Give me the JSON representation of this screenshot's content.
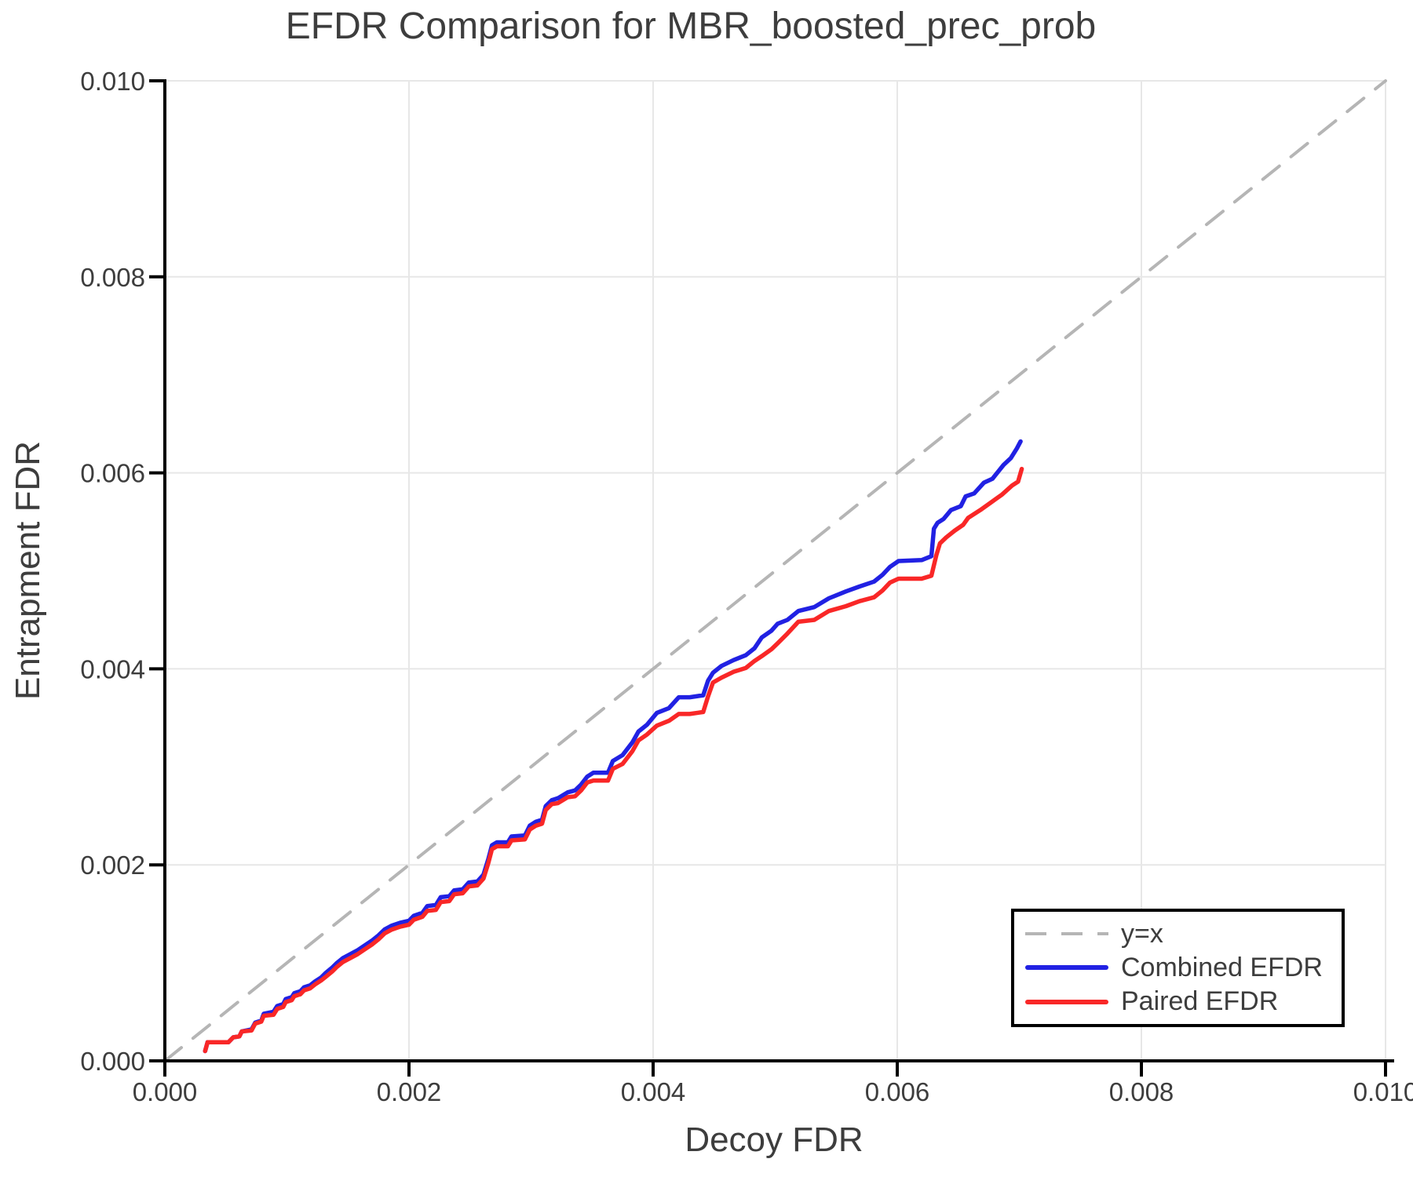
{
  "chart_data": {
    "type": "line",
    "title": "EFDR Comparison for MBR_boosted_prec_prob",
    "xlabel": "Decoy FDR",
    "ylabel": "Entrapment FDR",
    "xlim": [
      0.0,
      0.01
    ],
    "ylim": [
      0.0,
      0.01
    ],
    "xticks": [
      0.0,
      0.002,
      0.004,
      0.006,
      0.008,
      0.01
    ],
    "yticks": [
      0.0,
      0.002,
      0.004,
      0.006,
      0.008,
      0.01
    ],
    "x_tick_labels": [
      "0.000",
      "0.002",
      "0.004",
      "0.006",
      "0.008",
      "0.010"
    ],
    "y_tick_labels": [
      "0.000",
      "0.002",
      "0.004",
      "0.006",
      "0.008",
      "0.010"
    ],
    "grid": true,
    "grid_color": "#e7e7e7",
    "axis_color": "#000000",
    "text_color": "#3d3d3d",
    "legend": {
      "position": "lower right",
      "border_color": "#000000",
      "background": "#ffffff"
    },
    "series": [
      {
        "name": "y=x",
        "style": "dashed",
        "color": "#b5b5b5",
        "points": [
          [
            0.0,
            0.0
          ],
          [
            0.01,
            0.01
          ]
        ]
      },
      {
        "name": "Combined EFDR",
        "style": "solid",
        "color": "#2121e3",
        "points": [
          [
            0.00033,
            0.0001
          ],
          [
            0.00035,
            0.00019
          ],
          [
            0.00052,
            0.00019
          ],
          [
            0.00056,
            0.00024
          ],
          [
            0.00061,
            0.00025
          ],
          [
            0.00063,
            0.0003
          ],
          [
            0.00071,
            0.00032
          ],
          [
            0.00074,
            0.00039
          ],
          [
            0.00079,
            0.00041
          ],
          [
            0.00081,
            0.00048
          ],
          [
            0.00089,
            0.0005
          ],
          [
            0.00092,
            0.00056
          ],
          [
            0.00097,
            0.00058
          ],
          [
            0.00099,
            0.00063
          ],
          [
            0.00104,
            0.00065
          ],
          [
            0.00106,
            0.00069
          ],
          [
            0.00111,
            0.00071
          ],
          [
            0.00114,
            0.00075
          ],
          [
            0.00119,
            0.00077
          ],
          [
            0.00123,
            0.00081
          ],
          [
            0.00128,
            0.00085
          ],
          [
            0.00132,
            0.0009
          ],
          [
            0.00137,
            0.00095
          ],
          [
            0.00141,
            0.001
          ],
          [
            0.00146,
            0.00105
          ],
          [
            0.00152,
            0.00109
          ],
          [
            0.00158,
            0.00113
          ],
          [
            0.00164,
            0.00118
          ],
          [
            0.0017,
            0.00123
          ],
          [
            0.00175,
            0.00128
          ],
          [
            0.0018,
            0.00134
          ],
          [
            0.00186,
            0.00138
          ],
          [
            0.00193,
            0.00141
          ],
          [
            0.002,
            0.00143
          ],
          [
            0.00204,
            0.00148
          ],
          [
            0.00211,
            0.00151
          ],
          [
            0.00215,
            0.00158
          ],
          [
            0.00222,
            0.00159
          ],
          [
            0.00226,
            0.00167
          ],
          [
            0.00233,
            0.00168
          ],
          [
            0.00237,
            0.00174
          ],
          [
            0.00244,
            0.00175
          ],
          [
            0.00249,
            0.00182
          ],
          [
            0.00256,
            0.00183
          ],
          [
            0.00261,
            0.0019
          ],
          [
            0.00265,
            0.00206
          ],
          [
            0.00268,
            0.0022
          ],
          [
            0.00272,
            0.00223
          ],
          [
            0.00281,
            0.00223
          ],
          [
            0.00284,
            0.00229
          ],
          [
            0.00295,
            0.0023
          ],
          [
            0.00299,
            0.0024
          ],
          [
            0.00304,
            0.00244
          ],
          [
            0.00309,
            0.00246
          ],
          [
            0.00312,
            0.0026
          ],
          [
            0.00317,
            0.00266
          ],
          [
            0.00322,
            0.00268
          ],
          [
            0.0033,
            0.00274
          ],
          [
            0.00336,
            0.00276
          ],
          [
            0.00341,
            0.00282
          ],
          [
            0.00346,
            0.0029
          ],
          [
            0.00351,
            0.00294
          ],
          [
            0.00363,
            0.00294
          ],
          [
            0.00367,
            0.00306
          ],
          [
            0.00375,
            0.00312
          ],
          [
            0.00383,
            0.00325
          ],
          [
            0.00388,
            0.00336
          ],
          [
            0.00395,
            0.00343
          ],
          [
            0.00403,
            0.00355
          ],
          [
            0.00413,
            0.0036
          ],
          [
            0.00421,
            0.00371
          ],
          [
            0.0043,
            0.00371
          ],
          [
            0.00441,
            0.00373
          ],
          [
            0.00445,
            0.00388
          ],
          [
            0.00449,
            0.00396
          ],
          [
            0.00456,
            0.00403
          ],
          [
            0.00466,
            0.00409
          ],
          [
            0.00476,
            0.00414
          ],
          [
            0.00483,
            0.00421
          ],
          [
            0.00489,
            0.00432
          ],
          [
            0.00497,
            0.00439
          ],
          [
            0.00502,
            0.00446
          ],
          [
            0.0051,
            0.0045
          ],
          [
            0.00519,
            0.00459
          ],
          [
            0.00532,
            0.00463
          ],
          [
            0.00544,
            0.00472
          ],
          [
            0.00558,
            0.00479
          ],
          [
            0.00569,
            0.00484
          ],
          [
            0.00581,
            0.00489
          ],
          [
            0.00588,
            0.00496
          ],
          [
            0.00594,
            0.00504
          ],
          [
            0.00601,
            0.0051
          ],
          [
            0.0062,
            0.00511
          ],
          [
            0.00628,
            0.00515
          ],
          [
            0.0063,
            0.00543
          ],
          [
            0.00633,
            0.00549
          ],
          [
            0.00638,
            0.00553
          ],
          [
            0.00644,
            0.00562
          ],
          [
            0.00652,
            0.00566
          ],
          [
            0.00656,
            0.00576
          ],
          [
            0.00663,
            0.00579
          ],
          [
            0.00671,
            0.0059
          ],
          [
            0.00678,
            0.00594
          ],
          [
            0.00687,
            0.00608
          ],
          [
            0.00693,
            0.00615
          ],
          [
            0.00698,
            0.00625
          ],
          [
            0.00701,
            0.00632
          ]
        ]
      },
      {
        "name": "Paired EFDR",
        "style": "solid",
        "color": "#f92727",
        "points": [
          [
            0.00033,
            0.0001
          ],
          [
            0.00035,
            0.00019
          ],
          [
            0.00052,
            0.00019
          ],
          [
            0.00056,
            0.00024
          ],
          [
            0.00061,
            0.00025
          ],
          [
            0.00063,
            0.0003
          ],
          [
            0.00071,
            0.00031
          ],
          [
            0.00074,
            0.00038
          ],
          [
            0.00079,
            0.0004
          ],
          [
            0.00081,
            0.00046
          ],
          [
            0.00089,
            0.00047
          ],
          [
            0.00092,
            0.00053
          ],
          [
            0.00097,
            0.00055
          ],
          [
            0.00099,
            0.0006
          ],
          [
            0.00104,
            0.00062
          ],
          [
            0.00106,
            0.00066
          ],
          [
            0.00111,
            0.00068
          ],
          [
            0.00114,
            0.00072
          ],
          [
            0.00119,
            0.00074
          ],
          [
            0.00123,
            0.00078
          ],
          [
            0.00128,
            0.00082
          ],
          [
            0.00132,
            0.00086
          ],
          [
            0.00137,
            0.00091
          ],
          [
            0.00141,
            0.00096
          ],
          [
            0.00146,
            0.00101
          ],
          [
            0.00152,
            0.00105
          ],
          [
            0.00158,
            0.00109
          ],
          [
            0.00164,
            0.00114
          ],
          [
            0.0017,
            0.00119
          ],
          [
            0.00175,
            0.00124
          ],
          [
            0.0018,
            0.0013
          ],
          [
            0.00186,
            0.00134
          ],
          [
            0.00193,
            0.00137
          ],
          [
            0.002,
            0.00139
          ],
          [
            0.00204,
            0.00144
          ],
          [
            0.00211,
            0.00147
          ],
          [
            0.00215,
            0.00153
          ],
          [
            0.00222,
            0.00154
          ],
          [
            0.00226,
            0.00162
          ],
          [
            0.00233,
            0.00163
          ],
          [
            0.00237,
            0.0017
          ],
          [
            0.00244,
            0.00171
          ],
          [
            0.00249,
            0.00178
          ],
          [
            0.00256,
            0.00179
          ],
          [
            0.00261,
            0.00186
          ],
          [
            0.00265,
            0.00202
          ],
          [
            0.00268,
            0.00216
          ],
          [
            0.00272,
            0.00219
          ],
          [
            0.00281,
            0.00219
          ],
          [
            0.00284,
            0.00225
          ],
          [
            0.00295,
            0.00226
          ],
          [
            0.00299,
            0.00236
          ],
          [
            0.00304,
            0.0024
          ],
          [
            0.00309,
            0.00242
          ],
          [
            0.00312,
            0.00256
          ],
          [
            0.00317,
            0.00262
          ],
          [
            0.00322,
            0.00263
          ],
          [
            0.0033,
            0.00269
          ],
          [
            0.00336,
            0.0027
          ],
          [
            0.00341,
            0.00276
          ],
          [
            0.00346,
            0.00284
          ],
          [
            0.00351,
            0.00286
          ],
          [
            0.00363,
            0.00286
          ],
          [
            0.00367,
            0.00298
          ],
          [
            0.00375,
            0.00303
          ],
          [
            0.00383,
            0.00316
          ],
          [
            0.00388,
            0.00327
          ],
          [
            0.00395,
            0.00333
          ],
          [
            0.00403,
            0.00342
          ],
          [
            0.00413,
            0.00347
          ],
          [
            0.00421,
            0.00354
          ],
          [
            0.0043,
            0.00354
          ],
          [
            0.00441,
            0.00356
          ],
          [
            0.00445,
            0.00372
          ],
          [
            0.00449,
            0.00386
          ],
          [
            0.00456,
            0.00391
          ],
          [
            0.00466,
            0.00397
          ],
          [
            0.00476,
            0.00401
          ],
          [
            0.00483,
            0.00408
          ],
          [
            0.00489,
            0.00413
          ],
          [
            0.00497,
            0.0042
          ],
          [
            0.00502,
            0.00426
          ],
          [
            0.0051,
            0.00436
          ],
          [
            0.00519,
            0.00448
          ],
          [
            0.00532,
            0.0045
          ],
          [
            0.00544,
            0.00459
          ],
          [
            0.00558,
            0.00464
          ],
          [
            0.00569,
            0.00469
          ],
          [
            0.00581,
            0.00473
          ],
          [
            0.00588,
            0.0048
          ],
          [
            0.00594,
            0.00488
          ],
          [
            0.00601,
            0.00492
          ],
          [
            0.0062,
            0.00492
          ],
          [
            0.00628,
            0.00495
          ],
          [
            0.00632,
            0.00516
          ],
          [
            0.00635,
            0.00528
          ],
          [
            0.0064,
            0.00534
          ],
          [
            0.00647,
            0.00541
          ],
          [
            0.00654,
            0.00547
          ],
          [
            0.00658,
            0.00554
          ],
          [
            0.00668,
            0.00562
          ],
          [
            0.00677,
            0.0057
          ],
          [
            0.00686,
            0.00578
          ],
          [
            0.00694,
            0.00587
          ],
          [
            0.00699,
            0.00591
          ],
          [
            0.00702,
            0.00604
          ]
        ]
      }
    ]
  }
}
